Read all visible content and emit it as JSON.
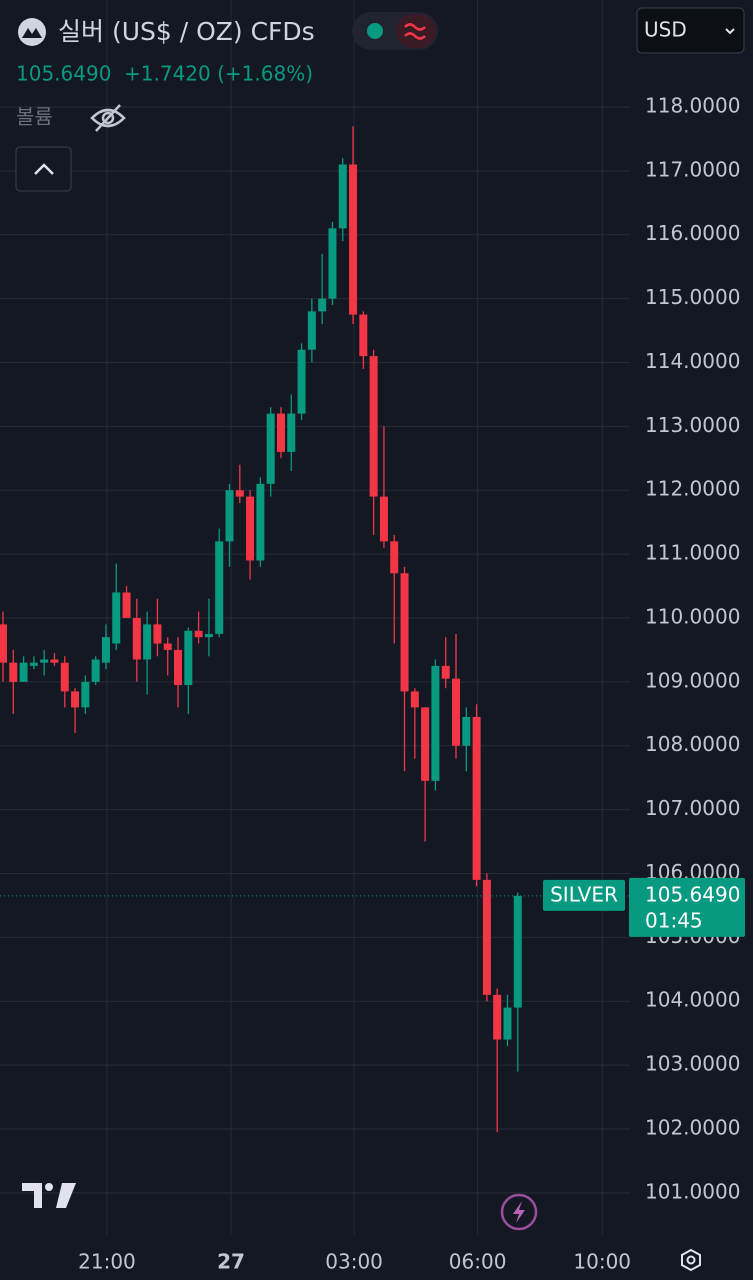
{
  "header": {
    "title": "실버 (US$ / OZ) CFDs",
    "price": "105.6490",
    "change": "+1.7420 (+1.68%)",
    "volume_label": "볼륨",
    "currency": "USD"
  },
  "chart_data": {
    "type": "candlestick",
    "up_color": "#089981",
    "down_color": "#f23645",
    "grid": true,
    "open": [
      109.9,
      109.3,
      109.0,
      109.25,
      109.3,
      109.35,
      109.3,
      108.85,
      108.6,
      109.0,
      109.3,
      109.6,
      110.4,
      110.0,
      109.35,
      109.9,
      109.6,
      109.5,
      108.95,
      109.8,
      109.7,
      109.75,
      111.2,
      112.0,
      111.9,
      110.9,
      112.1,
      113.2,
      112.6,
      113.2,
      114.2,
      114.8,
      115.0,
      116.1,
      117.1,
      114.75,
      114.1,
      111.9,
      111.2,
      110.7,
      108.85,
      108.6,
      107.45,
      109.25,
      109.05,
      108.0,
      108.45,
      105.9,
      104.1,
      103.4,
      103.9
    ],
    "high": [
      110.1,
      109.5,
      109.4,
      109.4,
      109.5,
      109.45,
      109.4,
      108.9,
      109.1,
      109.4,
      109.9,
      110.85,
      110.5,
      110.3,
      110.1,
      110.3,
      109.7,
      109.7,
      109.85,
      110.1,
      110.3,
      111.4,
      112.1,
      112.4,
      112.0,
      112.2,
      113.3,
      113.3,
      113.5,
      114.3,
      115.0,
      115.7,
      116.2,
      117.2,
      117.7,
      114.8,
      114.2,
      113.0,
      111.3,
      110.8,
      108.9,
      108.6,
      109.35,
      109.7,
      109.75,
      108.6,
      108.65,
      106.0,
      104.2,
      104.1,
      105.7
    ],
    "low": [
      109.0,
      108.5,
      109.0,
      109.2,
      109.1,
      109.25,
      108.6,
      108.2,
      108.5,
      108.95,
      109.2,
      109.5,
      110.0,
      109.0,
      108.8,
      109.4,
      109.1,
      108.6,
      108.5,
      109.6,
      109.4,
      109.7,
      110.8,
      111.8,
      110.6,
      110.8,
      111.9,
      112.5,
      112.3,
      113.1,
      114.0,
      114.6,
      114.9,
      115.9,
      114.6,
      113.9,
      111.3,
      111.1,
      109.6,
      107.6,
      107.8,
      106.5,
      107.3,
      108.9,
      107.8,
      107.6,
      105.8,
      104.0,
      101.95,
      103.3,
      102.9
    ],
    "close": [
      109.3,
      109.0,
      109.3,
      109.3,
      109.35,
      109.3,
      108.85,
      108.6,
      109.0,
      109.35,
      109.7,
      110.4,
      110.0,
      109.35,
      109.9,
      109.6,
      109.5,
      108.95,
      109.8,
      109.7,
      109.75,
      111.2,
      112.0,
      111.9,
      110.9,
      112.1,
      113.2,
      112.6,
      113.2,
      114.2,
      114.8,
      115.0,
      116.1,
      117.1,
      114.75,
      114.1,
      111.9,
      111.2,
      110.7,
      108.85,
      108.6,
      107.45,
      109.25,
      109.05,
      108.0,
      108.45,
      105.9,
      104.1,
      103.4,
      103.9,
      105.649
    ],
    "xlim": [
      -0.29,
      60.9
    ],
    "xticks": [
      {
        "value": 10.1,
        "label": "21:00"
      },
      {
        "value": 22.15,
        "label": "27"
      },
      {
        "value": 34.1,
        "label": "03:00"
      },
      {
        "value": 46.1,
        "label": "06:00"
      },
      {
        "value": 58.2,
        "label": "10:00"
      }
    ],
    "ylim": [
      100.34,
      119.675
    ],
    "yticks": [
      {
        "value": 101,
        "label": "101.0000"
      },
      {
        "value": 102,
        "label": "102.0000"
      },
      {
        "value": 103,
        "label": "103.0000"
      },
      {
        "value": 104,
        "label": "104.0000"
      },
      {
        "value": 105,
        "label": "105.0000"
      },
      {
        "value": 106,
        "label": "106.0000"
      },
      {
        "value": 107,
        "label": "107.0000"
      },
      {
        "value": 108,
        "label": "108.0000"
      },
      {
        "value": 109,
        "label": "109.0000"
      },
      {
        "value": 110,
        "label": "110.0000"
      },
      {
        "value": 111,
        "label": "111.0000"
      },
      {
        "value": 112,
        "label": "112.0000"
      },
      {
        "value": 113,
        "label": "113.0000"
      },
      {
        "value": 114,
        "label": "114.0000"
      },
      {
        "value": 115,
        "label": "115.0000"
      },
      {
        "value": 116,
        "label": "116.0000"
      },
      {
        "value": 117,
        "label": "117.0000"
      },
      {
        "value": 118,
        "label": "118.0000"
      }
    ],
    "last_price": {
      "value": 105.649,
      "label": "105.6490"
    },
    "symbol_label": "SILVER",
    "countdown": "01:45"
  }
}
